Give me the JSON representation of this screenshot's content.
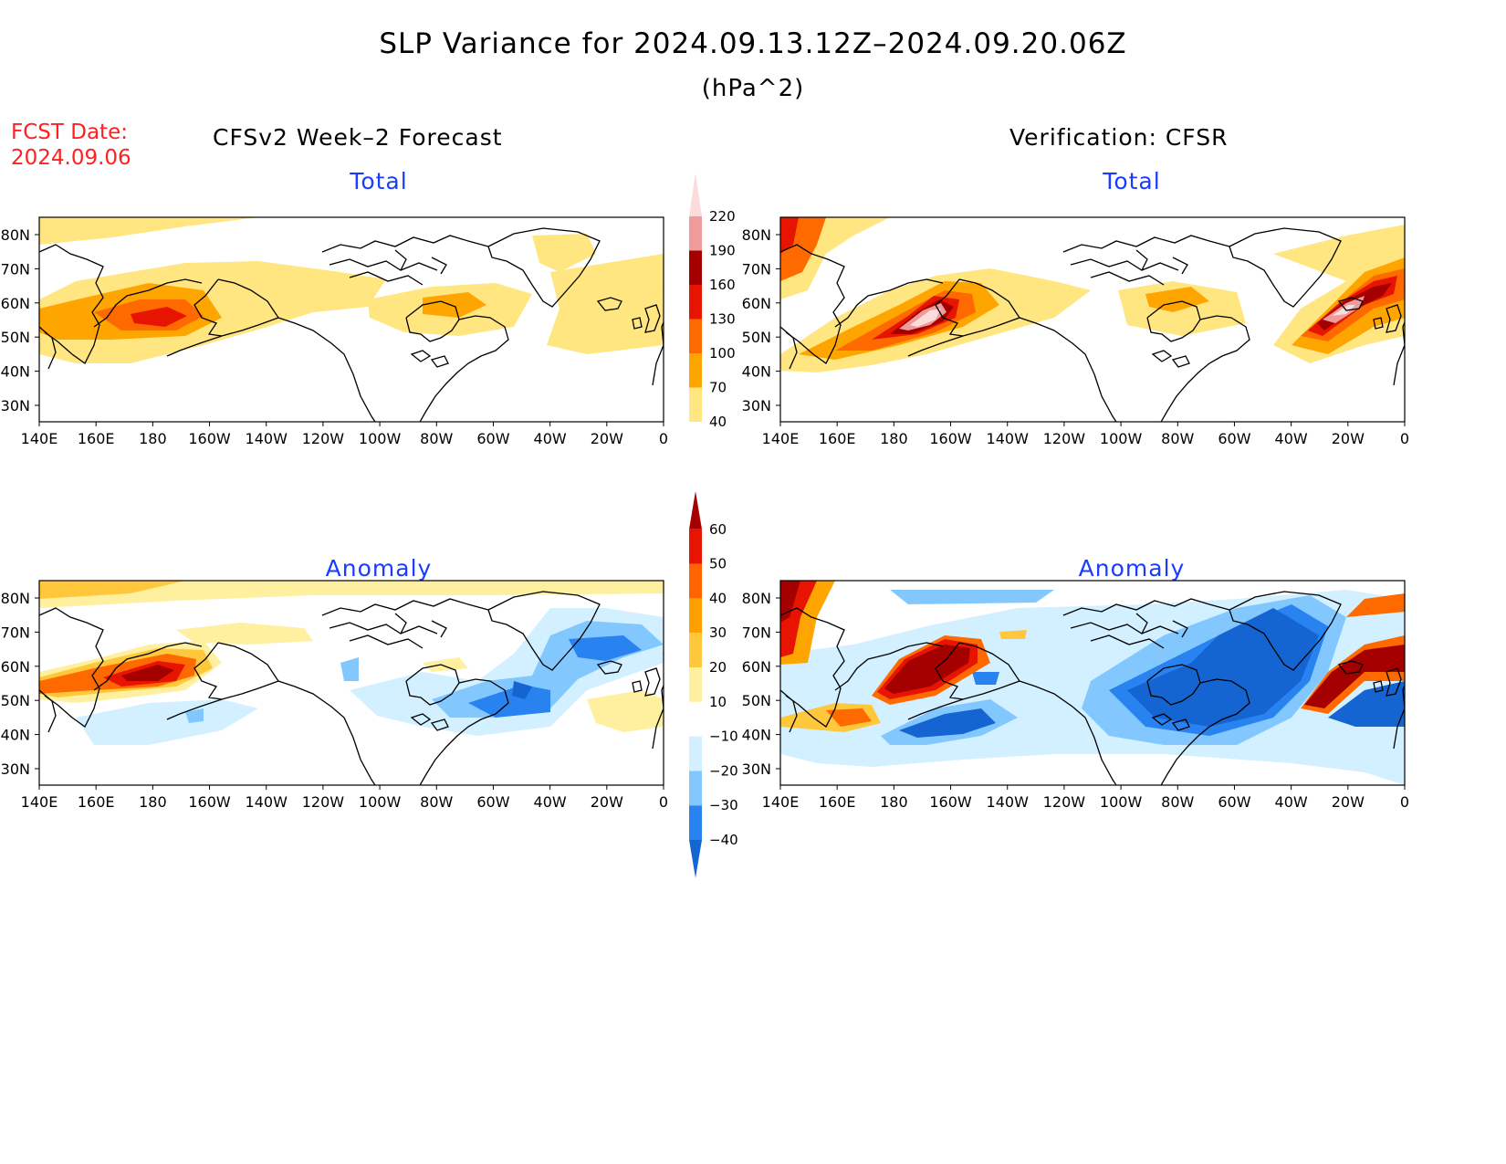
{
  "title": "SLP Variance for 2024.09.13.12Z–2024.09.20.06Z",
  "units": "(hPa^2)",
  "fcst_date": {
    "label": "FCST Date:",
    "value": "2024.09.06"
  },
  "columns": {
    "left": "CFSv2 Week–2 Forecast",
    "right": "Verification: CFSR"
  },
  "panels": {
    "tl": "Total",
    "tr": "Total",
    "bl": "Anomaly",
    "br": "Anomaly"
  },
  "lon_ticks": [
    "140E",
    "160E",
    "180",
    "160W",
    "140W",
    "120W",
    "100W",
    "80W",
    "60W",
    "40W",
    "20W",
    "0"
  ],
  "lat_ticks": [
    "80N",
    "70N",
    "60N",
    "50N",
    "40N",
    "30N"
  ],
  "total_colorbar": {
    "levels": [
      "40",
      "70",
      "100",
      "130",
      "160",
      "190",
      "220"
    ],
    "colors": [
      "#ffe680",
      "#ffa500",
      "#ff6a00",
      "#e61400",
      "#a50000",
      "#f09b9b",
      "#fadcdc"
    ]
  },
  "anomaly_colorbar": {
    "levels": [
      "−40",
      "−30",
      "−20",
      "−10",
      "10",
      "20",
      "30",
      "40",
      "50",
      "60"
    ],
    "colors": [
      "#1464d2",
      "#2882f0",
      "#82c8ff",
      "#d2f0ff",
      "#ffffff",
      "#fff0a0",
      "#ffc83c",
      "#ffa000",
      "#ff6400",
      "#e61400",
      "#a50000"
    ]
  }
}
